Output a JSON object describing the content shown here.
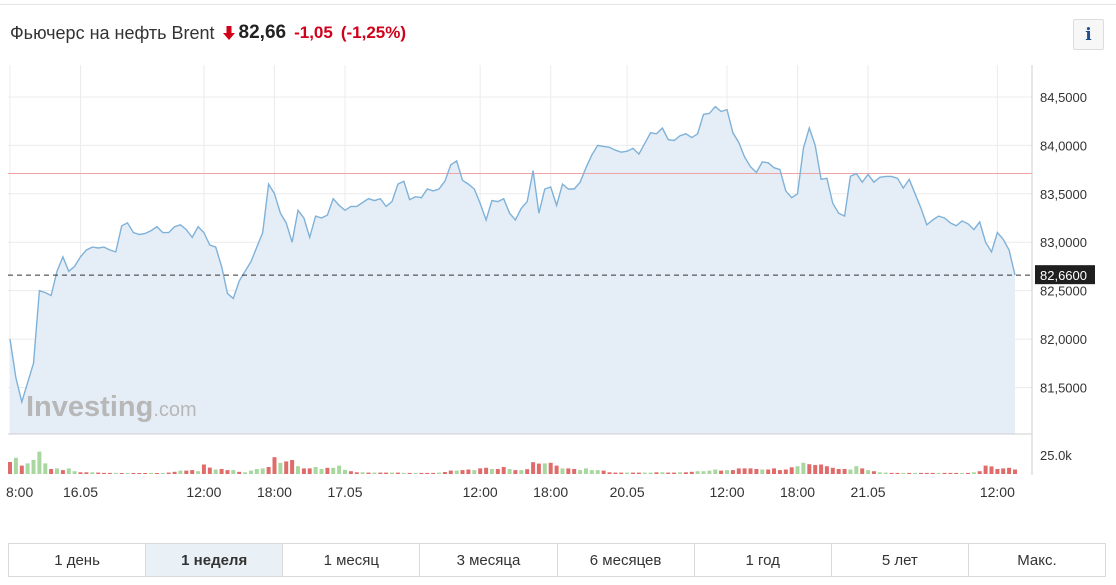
{
  "header": {
    "title": "Фьючерс на нефть Brent",
    "price": "82,66",
    "change": "-1,05",
    "change_pct": "(-1,25%)",
    "trend_icon": "arrow-down-icon",
    "down_color": "#d0021b"
  },
  "info_button": {
    "label": "i",
    "icon": "info-icon"
  },
  "watermark": {
    "brand": "Investing",
    "suffix": ".com"
  },
  "ranges": {
    "active_index": 1,
    "items": [
      {
        "label": "1 день"
      },
      {
        "label": "1 неделя"
      },
      {
        "label": "1 месяц"
      },
      {
        "label": "3 месяца"
      },
      {
        "label": "6 месяцев"
      },
      {
        "label": "1 год"
      },
      {
        "label": "5 лет"
      },
      {
        "label": "Макс."
      }
    ]
  },
  "chart_data": {
    "type": "area",
    "y_ticks": [
      "84,5000",
      "84,0000",
      "83,5000",
      "83,0000",
      "82,5000",
      "82,0000",
      "81,5000"
    ],
    "y_tick_values": [
      84.5,
      84.0,
      83.5,
      83.0,
      82.5,
      82.0,
      81.5
    ],
    "ylim": [
      81.02,
      84.83
    ],
    "x_ticks": [
      "8:00",
      "16.05",
      "12:00",
      "18:00",
      "17.05",
      "12:00",
      "18:00",
      "20.05",
      "12:00",
      "18:00",
      "21.05",
      "12:00"
    ],
    "x_tick_index": [
      0,
      12,
      33,
      45,
      57,
      80,
      92,
      105,
      122,
      134,
      146,
      168
    ],
    "current_price_label": "82,6600",
    "current_price": 82.66,
    "reference_line": 83.71,
    "volume_axis_label": "25.0k",
    "series_color": "#7fb2d9",
    "area_color": "#e5eef6",
    "reference_line_color": "#f2a3a3",
    "up_volume_color": "#a8d8a0",
    "down_volume_color": "#e06b6b",
    "values": [
      82.0,
      81.6,
      81.35,
      81.55,
      81.75,
      82.5,
      82.48,
      82.45,
      82.7,
      82.85,
      82.7,
      82.75,
      82.85,
      82.92,
      82.95,
      82.94,
      82.95,
      82.92,
      82.9,
      83.17,
      83.2,
      83.1,
      83.08,
      83.09,
      83.12,
      83.16,
      83.1,
      83.1,
      83.16,
      83.18,
      83.13,
      83.05,
      83.16,
      83.1,
      82.97,
      82.95,
      82.75,
      82.47,
      82.42,
      82.6,
      82.7,
      82.8,
      82.95,
      83.1,
      83.6,
      83.5,
      83.3,
      83.2,
      83.0,
      83.33,
      83.25,
      83.05,
      83.27,
      83.25,
      83.28,
      83.45,
      83.38,
      83.33,
      83.37,
      83.37,
      83.41,
      83.45,
      83.43,
      83.45,
      83.37,
      83.42,
      83.6,
      83.63,
      83.44,
      83.47,
      83.46,
      83.55,
      83.53,
      83.55,
      83.63,
      83.8,
      83.84,
      83.64,
      83.6,
      83.55,
      83.4,
      83.23,
      83.43,
      83.42,
      83.45,
      83.3,
      83.23,
      83.35,
      83.42,
      83.74,
      83.3,
      83.55,
      83.57,
      83.38,
      83.6,
      83.55,
      83.55,
      83.62,
      83.77,
      83.9,
      84.0,
      83.99,
      83.98,
      83.95,
      83.93,
      83.94,
      83.97,
      83.91,
      84.02,
      84.13,
      84.12,
      84.18,
      84.06,
      84.05,
      84.1,
      84.12,
      84.08,
      84.12,
      84.32,
      84.33,
      84.4,
      84.35,
      84.37,
      84.13,
      84.03,
      83.88,
      83.78,
      83.72,
      83.83,
      83.82,
      83.77,
      83.75,
      83.53,
      83.46,
      83.5,
      83.97,
      84.18,
      84.0,
      83.65,
      83.66,
      83.4,
      83.3,
      83.27,
      83.68,
      83.71,
      83.62,
      83.7,
      83.62,
      83.67,
      83.68,
      83.68,
      83.66,
      83.56,
      83.65,
      83.5,
      83.35,
      83.18,
      83.23,
      83.27,
      83.25,
      83.2,
      83.17,
      83.22,
      83.19,
      83.13,
      83.21,
      83.0,
      82.9,
      83.1,
      83.03,
      82.92,
      82.66
    ],
    "volumes": [
      0.43,
      0.58,
      0.3,
      0.38,
      0.5,
      0.8,
      0.38,
      0.18,
      0.2,
      0.14,
      0.2,
      0.1,
      0.06,
      0.06,
      0.06,
      0.05,
      0.04,
      0.04,
      0.04,
      0.03,
      0.03,
      0.03,
      0.03,
      0.03,
      0.04,
      0.03,
      0.04,
      0.05,
      0.08,
      0.12,
      0.12,
      0.14,
      0.1,
      0.34,
      0.23,
      0.16,
      0.18,
      0.14,
      0.14,
      0.08,
      0.06,
      0.12,
      0.18,
      0.2,
      0.25,
      0.6,
      0.4,
      0.45,
      0.5,
      0.28,
      0.2,
      0.2,
      0.25,
      0.18,
      0.22,
      0.22,
      0.3,
      0.15,
      0.1,
      0.06,
      0.06,
      0.05,
      0.05,
      0.05,
      0.05,
      0.05,
      0.05,
      0.04,
      0.04,
      0.04,
      0.04,
      0.04,
      0.04,
      0.05,
      0.07,
      0.12,
      0.12,
      0.14,
      0.16,
      0.14,
      0.2,
      0.22,
      0.18,
      0.18,
      0.25,
      0.18,
      0.14,
      0.14,
      0.17,
      0.42,
      0.37,
      0.38,
      0.4,
      0.3,
      0.2,
      0.2,
      0.18,
      0.14,
      0.2,
      0.14,
      0.14,
      0.12,
      0.06,
      0.05,
      0.05,
      0.05,
      0.05,
      0.05,
      0.05,
      0.05,
      0.06,
      0.06,
      0.05,
      0.05,
      0.06,
      0.06,
      0.08,
      0.1,
      0.1,
      0.12,
      0.16,
      0.12,
      0.14,
      0.14,
      0.2,
      0.2,
      0.2,
      0.18,
      0.16,
      0.16,
      0.2,
      0.14,
      0.16,
      0.24,
      0.28,
      0.4,
      0.35,
      0.32,
      0.34,
      0.28,
      0.22,
      0.18,
      0.18,
      0.16,
      0.28,
      0.2,
      0.14,
      0.1,
      0.06,
      0.05,
      0.04,
      0.04,
      0.04,
      0.04,
      0.04,
      0.04,
      0.04,
      0.04,
      0.04,
      0.04,
      0.04,
      0.04,
      0.04,
      0.04,
      0.06,
      0.1,
      0.3,
      0.27,
      0.18,
      0.2,
      0.22,
      0.16
    ],
    "volume_up": [
      0,
      1,
      0,
      1,
      1,
      1,
      1,
      0,
      1,
      0,
      1,
      1,
      0,
      0,
      1,
      0,
      0,
      0,
      1,
      0,
      1,
      0,
      0,
      0,
      1,
      0,
      1,
      0,
      0,
      1,
      0,
      0,
      1,
      0,
      0,
      1,
      0,
      0,
      1,
      0,
      1,
      1,
      1,
      1,
      0,
      0,
      1,
      0,
      0,
      1,
      0,
      0,
      1,
      1,
      0,
      1,
      1,
      1,
      0,
      0,
      1,
      0,
      1,
      0,
      0,
      1,
      0,
      1,
      0,
      1,
      0,
      0,
      0,
      1,
      0,
      0,
      1,
      0,
      0,
      1,
      0,
      0,
      1,
      0,
      0,
      1,
      0,
      1,
      0,
      0,
      0,
      1,
      0,
      0,
      1,
      0,
      0,
      1,
      1,
      1,
      1,
      0,
      0,
      0,
      0,
      1,
      0,
      0,
      1,
      1,
      0,
      1,
      0,
      0,
      1,
      0,
      0,
      1,
      1,
      1,
      1,
      0,
      1,
      0,
      0,
      0,
      0,
      0,
      1,
      0,
      0,
      0,
      0,
      0,
      1,
      1,
      0,
      0,
      0,
      0,
      0,
      0,
      0,
      1,
      1,
      0,
      1,
      0,
      1,
      1,
      0,
      0,
      1,
      0,
      1,
      0,
      0,
      0,
      1,
      0,
      0,
      0,
      1,
      0,
      1,
      0,
      0,
      0,
      0,
      0,
      0,
      0
    ]
  }
}
